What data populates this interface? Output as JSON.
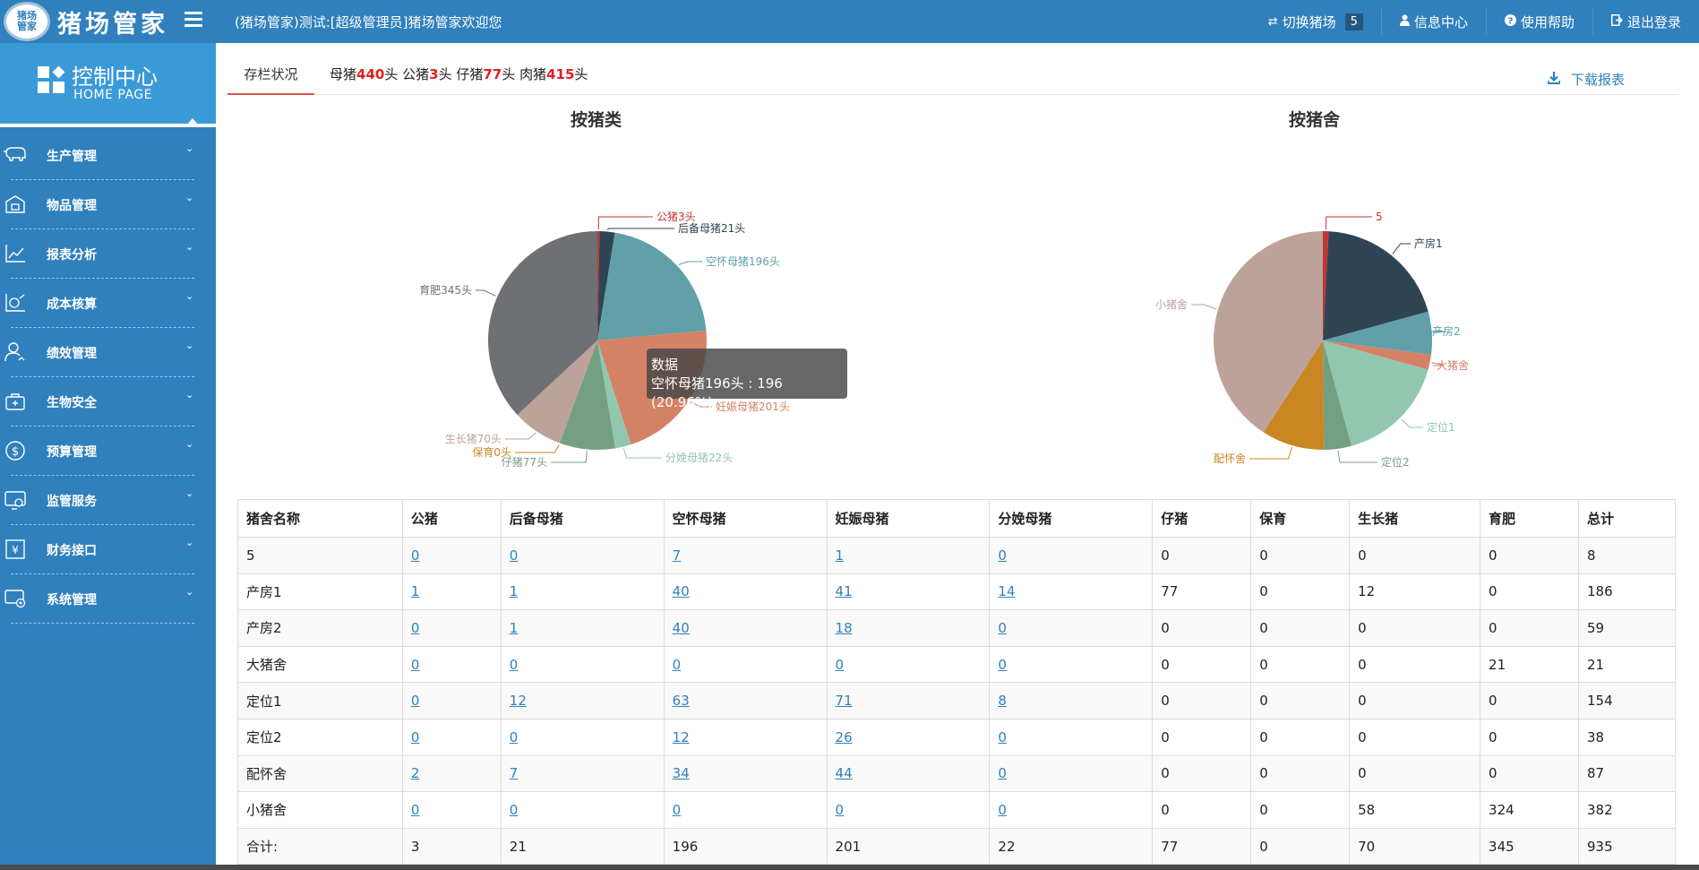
{
  "app": {
    "logo_seal_text": "猪场管家",
    "logo_text": "猪场管家",
    "welcome": "(猪场管家)测试:[超级管理员]猪场管家欢迎您"
  },
  "topnav": {
    "switch_farm": "切换猪场",
    "switch_farm_badge": "5",
    "info_center": "信息中心",
    "help": "使用帮助",
    "logout": "退出登录"
  },
  "sidebar": {
    "title": "控制中心",
    "subtitle": "HOME PAGE",
    "items": [
      {
        "label": "生产管理",
        "icon": "pig-icon"
      },
      {
        "label": "物品管理",
        "icon": "warehouse-icon"
      },
      {
        "label": "报表分析",
        "icon": "line-chart-icon"
      },
      {
        "label": "成本核算",
        "icon": "cost-chart-icon"
      },
      {
        "label": "绩效管理",
        "icon": "user-performance-icon"
      },
      {
        "label": "生物安全",
        "icon": "medical-kit-icon"
      },
      {
        "label": "预算管理",
        "icon": "money-icon"
      },
      {
        "label": "监管服务",
        "icon": "monitor-icon"
      },
      {
        "label": "财务接口",
        "icon": "finance-icon"
      },
      {
        "label": "系统管理",
        "icon": "settings-monitor-icon"
      }
    ]
  },
  "tabs": {
    "active": "存栏状况",
    "summary": {
      "sow_label": "母猪",
      "sow_value": "440",
      "sow_unit": "头",
      "boar_label": "公猪",
      "boar_value": "3",
      "boar_unit": "头",
      "piglet_label": "仔猪",
      "piglet_value": "77",
      "piglet_unit": "头",
      "meat_label": "肉猪",
      "meat_value": "415",
      "meat_unit": "头"
    },
    "download": "下载报表"
  },
  "chart_data": [
    {
      "type": "pie",
      "title": "按猪类",
      "series": [
        {
          "name": "公猪3头",
          "value": 3,
          "color": "#c23531"
        },
        {
          "name": "后备母猪21头",
          "value": 21,
          "color": "#2f4554"
        },
        {
          "name": "空怀母猪196头",
          "value": 196,
          "color": "#61a0a8"
        },
        {
          "name": "妊娠母猪201头",
          "value": 201,
          "color": "#d48265"
        },
        {
          "name": "分娩母猪22头",
          "value": 22,
          "color": "#91c7ae"
        },
        {
          "name": "仔猪77头",
          "value": 77,
          "color": "#749f83"
        },
        {
          "name": "保育0头",
          "value": 0,
          "color": "#ca8622"
        },
        {
          "name": "生长猪70头",
          "value": 70,
          "color": "#bda29a"
        },
        {
          "name": "育肥345头",
          "value": 345,
          "color": "#6e7074"
        }
      ],
      "tooltip": {
        "title": "数据",
        "text": "空怀母猪196头 : 196 (20.96%)"
      }
    },
    {
      "type": "pie",
      "title": "按猪舍",
      "series": [
        {
          "name": "5",
          "value": 8,
          "color": "#c23531"
        },
        {
          "name": "产房1",
          "value": 186,
          "color": "#2f4554"
        },
        {
          "name": "产房2",
          "value": 59,
          "color": "#61a0a8"
        },
        {
          "name": "大猪舍",
          "value": 21,
          "color": "#d48265"
        },
        {
          "name": "定位1",
          "value": 154,
          "color": "#91c7ae"
        },
        {
          "name": "定位2",
          "value": 38,
          "color": "#749f83"
        },
        {
          "name": "配怀舍",
          "value": 87,
          "color": "#ca8622"
        },
        {
          "name": "小猪舍",
          "value": 382,
          "color": "#bda29a"
        }
      ]
    }
  ],
  "table": {
    "headers": [
      "猪舍名称",
      "公猪",
      "后备母猪",
      "空怀母猪",
      "妊娠母猪",
      "分娩母猪",
      "仔猪",
      "保育",
      "生长猪",
      "育肥",
      "总计"
    ],
    "rows": [
      [
        "5",
        "0",
        "0",
        "7",
        "1",
        "0",
        "0",
        "0",
        "0",
        "0",
        "8"
      ],
      [
        "产房1",
        "1",
        "1",
        "40",
        "41",
        "14",
        "77",
        "0",
        "12",
        "0",
        "186"
      ],
      [
        "产房2",
        "0",
        "1",
        "40",
        "18",
        "0",
        "0",
        "0",
        "0",
        "0",
        "59"
      ],
      [
        "大猪舍",
        "0",
        "0",
        "0",
        "0",
        "0",
        "0",
        "0",
        "0",
        "21",
        "21"
      ],
      [
        "定位1",
        "0",
        "12",
        "63",
        "71",
        "8",
        "0",
        "0",
        "0",
        "0",
        "154"
      ],
      [
        "定位2",
        "0",
        "0",
        "12",
        "26",
        "0",
        "0",
        "0",
        "0",
        "0",
        "38"
      ],
      [
        "配怀舍",
        "2",
        "7",
        "34",
        "44",
        "0",
        "0",
        "0",
        "0",
        "0",
        "87"
      ],
      [
        "小猪舍",
        "0",
        "0",
        "0",
        "0",
        "0",
        "0",
        "0",
        "58",
        "324",
        "382"
      ]
    ],
    "total": [
      "合计:",
      "3",
      "21",
      "196",
      "201",
      "22",
      "77",
      "0",
      "70",
      "345",
      "935"
    ]
  }
}
